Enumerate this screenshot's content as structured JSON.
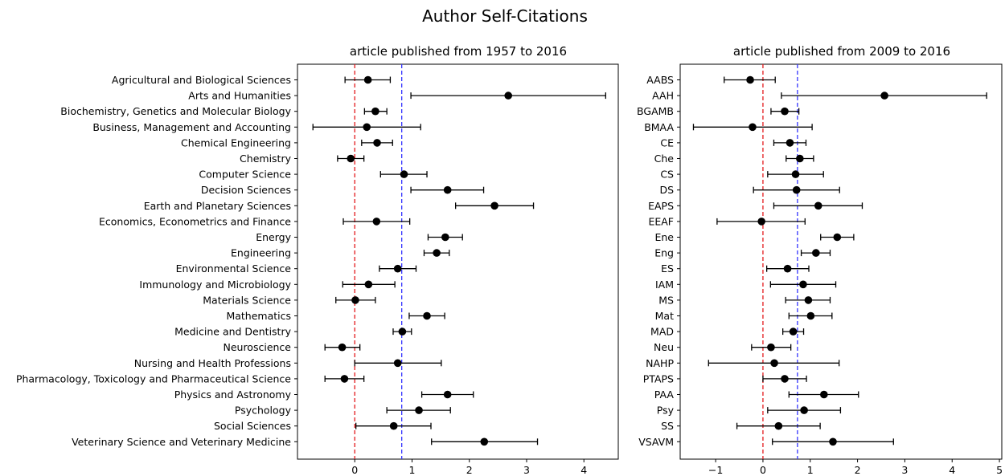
{
  "figure": {
    "title": "Author Self-Citations"
  },
  "chart_data": [
    {
      "type": "scatter",
      "title": "article published from 1957 to 2016",
      "xlim": [
        -1.0,
        4.6
      ],
      "xticks": [
        0,
        1,
        2,
        3,
        4
      ],
      "grid": false,
      "reference_lines": [
        {
          "x": 0,
          "color": "#e41a1c",
          "style": "dashed"
        },
        {
          "x": 0.82,
          "color": "#3333ff",
          "style": "dashed"
        }
      ],
      "categories": [
        "Agricultural and Biological Sciences",
        "Arts and Humanities",
        "Biochemistry, Genetics and Molecular Biology",
        "Business, Management and Accounting",
        "Chemical Engineering",
        "Chemistry",
        "Computer Science",
        "Decision Sciences",
        "Earth and Planetary Sciences",
        "Economics, Econometrics and Finance",
        "Energy",
        "Engineering",
        "Environmental Science",
        "Immunology and Microbiology",
        "Materials Science",
        "Mathematics",
        "Medicine and Dentistry",
        "Neuroscience",
        "Nursing and Health Professions",
        "Pharmacology, Toxicology and Pharmaceutical Science",
        "Physics and Astronomy",
        "Psychology",
        "Social Sciences",
        "Veterinary Science and Veterinary Medicine"
      ],
      "values": [
        0.23,
        2.68,
        0.36,
        0.21,
        0.39,
        -0.07,
        0.86,
        1.62,
        2.44,
        0.38,
        1.58,
        1.43,
        0.75,
        0.24,
        0.01,
        1.26,
        0.83,
        -0.22,
        0.75,
        -0.18,
        1.62,
        1.12,
        0.68,
        2.26
      ],
      "lower": [
        -0.17,
        0.98,
        0.17,
        -0.73,
        0.12,
        -0.3,
        0.45,
        0.98,
        1.76,
        -0.2,
        1.28,
        1.21,
        0.43,
        -0.21,
        -0.33,
        0.95,
        0.67,
        -0.52,
        0.0,
        -0.52,
        1.17,
        0.56,
        0.02,
        1.34
      ],
      "upper": [
        0.62,
        4.38,
        0.56,
        1.15,
        0.66,
        0.16,
        1.26,
        2.25,
        3.12,
        0.96,
        1.88,
        1.65,
        1.07,
        0.7,
        0.36,
        1.57,
        0.99,
        0.09,
        1.51,
        0.16,
        2.07,
        1.67,
        1.33,
        3.19
      ]
    },
    {
      "type": "scatter",
      "title": "article published from 2009 to 2016",
      "xlim": [
        -1.75,
        5.05
      ],
      "xticks": [
        -1,
        0,
        1,
        2,
        3,
        4,
        5
      ],
      "grid": false,
      "reference_lines": [
        {
          "x": 0,
          "color": "#e41a1c",
          "style": "dashed"
        },
        {
          "x": 0.73,
          "color": "#3333ff",
          "style": "dashed"
        }
      ],
      "categories": [
        "AABS",
        "AAH",
        "BGAMB",
        "BMAA",
        "CE",
        "Che",
        "CS",
        "DS",
        "EAPS",
        "EEAF",
        "Ene",
        "Eng",
        "ES",
        "IAM",
        "MS",
        "Mat",
        "MAD",
        "Neu",
        "NAHP",
        "PTAPS",
        "PAA",
        "Psy",
        "SS",
        "VSAVM"
      ],
      "values": [
        -0.27,
        2.57,
        0.46,
        -0.22,
        0.57,
        0.78,
        0.69,
        0.71,
        1.17,
        -0.03,
        1.57,
        1.12,
        0.52,
        0.85,
        0.96,
        1.01,
        0.64,
        0.17,
        0.24,
        0.46,
        1.29,
        0.87,
        0.33,
        1.48
      ],
      "lower": [
        -0.82,
        0.39,
        0.17,
        -1.47,
        0.23,
        0.49,
        0.1,
        -0.2,
        0.23,
        -0.97,
        1.22,
        0.81,
        0.08,
        0.16,
        0.48,
        0.55,
        0.42,
        -0.24,
        -1.15,
        0.0,
        0.55,
        0.1,
        -0.55,
        0.2
      ],
      "upper": [
        0.26,
        4.73,
        0.76,
        1.04,
        0.91,
        1.07,
        1.28,
        1.62,
        2.1,
        0.89,
        1.92,
        1.42,
        0.97,
        1.54,
        1.42,
        1.46,
        0.86,
        0.59,
        1.61,
        0.92,
        2.02,
        1.64,
        1.21,
        2.76
      ]
    }
  ]
}
